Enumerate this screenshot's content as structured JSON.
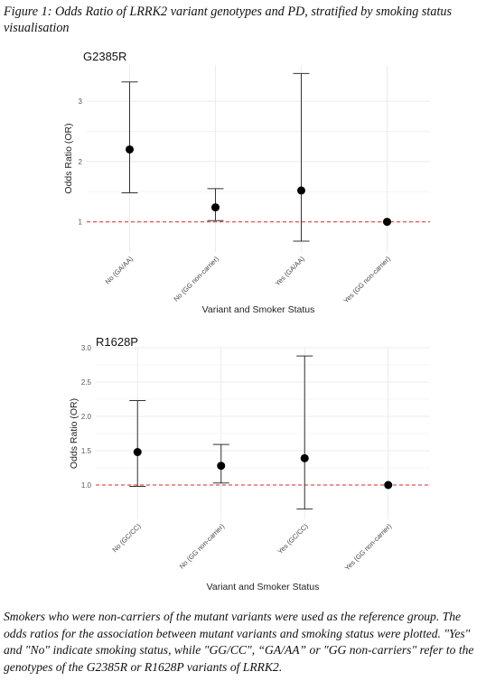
{
  "caption_top": "Figure 1: Odds Ratio of LRRK2 variant genotypes and PD, stratified by smoking status visualisation",
  "caption_bottom": "Smokers who were non-carriers of the mutant variants were used as the reference group. The odds ratios for the association between mutant variants and smoking status were plotted. \"Yes\" and \"No\" indicate smoking status, while \"GG/CC\", “GA/AA” or \"GG non-carriers\" refer to the genotypes of the G2385R or R1628P variants of LRRK2.",
  "colors": {
    "point": "#000000",
    "errorbar": "#333333",
    "reference_line": "#e05555",
    "grid": "#ececec"
  },
  "chart_data": [
    {
      "type": "scatter",
      "title": "G2385R",
      "xlabel": "Variant and Smoker Status",
      "ylabel": "Odds Ratio (OR)",
      "categories": [
        "No (GA/AA)",
        "No (GG non-carrier)",
        "Yes (GA/AA)",
        "Yes (GG non-carrier)"
      ],
      "values": [
        2.2,
        1.24,
        1.52,
        1.0
      ],
      "ci_lower": [
        1.48,
        1.02,
        0.68,
        1.0
      ],
      "ci_upper": [
        3.32,
        1.55,
        3.46,
        1.0
      ],
      "ylim": [
        0.5,
        3.6
      ],
      "yticks": [
        "1",
        "2",
        "3"
      ],
      "ytick_values": [
        1,
        2,
        3
      ],
      "reference_line": 1,
      "grid": true
    },
    {
      "type": "scatter",
      "title": "R1628P",
      "xlabel": "Variant and Smoker Status",
      "ylabel": "Odds Ratio (OR)",
      "categories": [
        "No (GC/CC)",
        "No (GG non-carrier)",
        "Yes (GC/CC)",
        "Yes (GG non-carrier)"
      ],
      "values": [
        1.48,
        1.28,
        1.39,
        1.0
      ],
      "ci_lower": [
        0.98,
        1.03,
        0.65,
        1.0
      ],
      "ci_upper": [
        2.23,
        1.59,
        2.88,
        1.0
      ],
      "ylim": [
        0.5,
        3.0
      ],
      "yticks": [
        "1.0",
        "1.5",
        "2.0",
        "2.5",
        "3.0"
      ],
      "ytick_values": [
        1.0,
        1.5,
        2.0,
        2.5,
        3.0
      ],
      "reference_line": 1,
      "grid": true
    }
  ]
}
